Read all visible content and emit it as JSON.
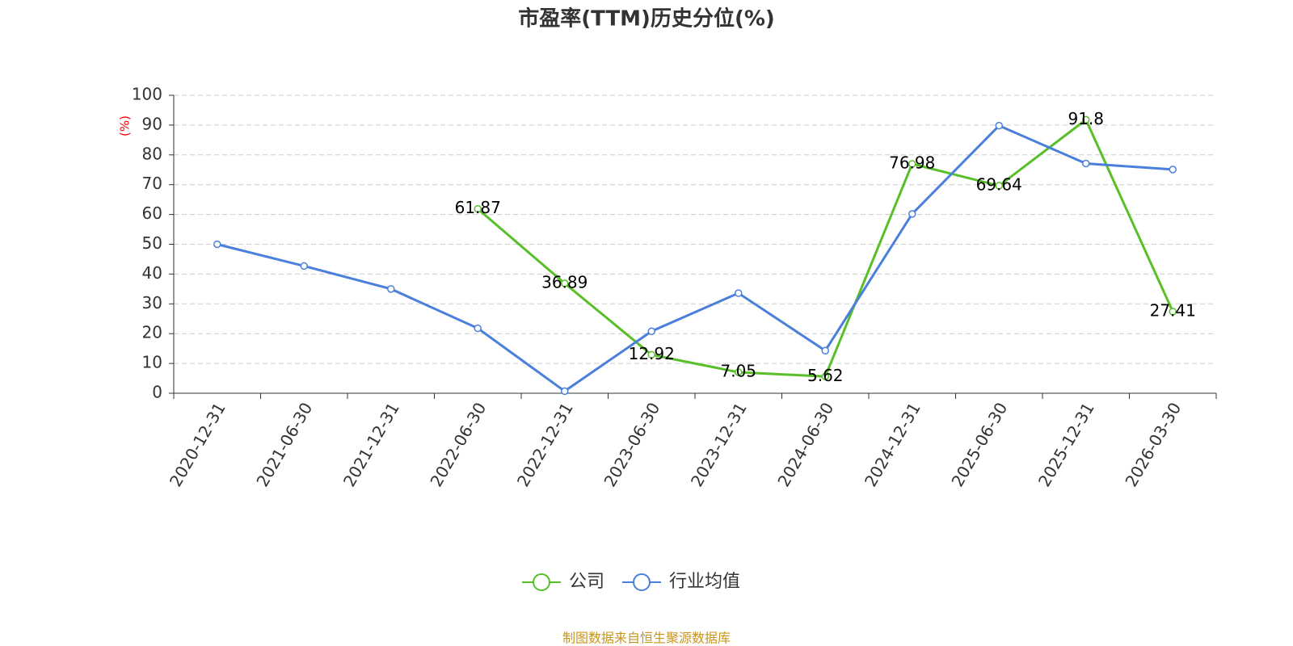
{
  "chart_data": {
    "type": "line",
    "title": "市盈率(TTM)历史分位(%)",
    "y_label": "(%)",
    "source": "制图数据来自恒生聚源数据库",
    "categories": [
      "2020-12-31",
      "2021-06-30",
      "2021-12-31",
      "2022-06-30",
      "2022-12-31",
      "2023-06-30",
      "2023-12-31",
      "2024-06-30",
      "2024-12-31",
      "2025-06-30",
      "2025-12-31",
      "2026-03-30"
    ],
    "series": [
      {
        "name": "公司",
        "color": "#58bf29",
        "values": [
          null,
          null,
          null,
          61.87,
          36.89,
          12.92,
          7.05,
          5.62,
          76.98,
          69.64,
          91.8,
          27.41
        ],
        "show_labels": true
      },
      {
        "name": "行业均值",
        "color": "#4a7fdb",
        "values": [
          50,
          42.7,
          35,
          21.8,
          0.7,
          20.8,
          33.6,
          14.3,
          60.2,
          89.8,
          77.1,
          75.1
        ],
        "show_labels": false
      }
    ],
    "ylim": [
      0,
      100
    ],
    "yticks": [
      0,
      10,
      20,
      30,
      40,
      50,
      60,
      70,
      80,
      90,
      100
    ],
    "grid": true
  }
}
